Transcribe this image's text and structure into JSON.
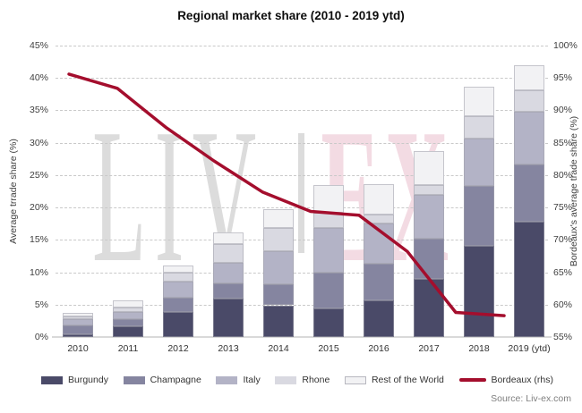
{
  "window": {
    "title": "Regional market share (2010 - 2019 ytd)"
  },
  "source_note": "Source: Liv-ex.com",
  "watermark": {
    "left_text": "LIV",
    "right_text": "EX",
    "gray": "#dcdcdc",
    "pink": "#f3dbe3"
  },
  "chart_data": {
    "type": "combo_stacked_bar_line",
    "title": "Regional market share (2010 - 2019 ytd)",
    "categories": [
      "2010",
      "2011",
      "2012",
      "2013",
      "2014",
      "2015",
      "2016",
      "2017",
      "2018",
      "2019 (ytd)"
    ],
    "left_axis": {
      "label": "Average trrade share (%)",
      "min": 0,
      "max": 45,
      "step": 5,
      "tick_labels": [
        "0%",
        "5%",
        "10%",
        "15%",
        "20%",
        "25%",
        "30%",
        "35%",
        "40%",
        "45%"
      ]
    },
    "right_axis": {
      "label": "Bordeaux's average trade share (%)",
      "min": 55,
      "max": 100,
      "step": 5,
      "tick_labels": [
        "55%",
        "60%",
        "65%",
        "70%",
        "75%",
        "80%",
        "85%",
        "90%",
        "95%",
        "100%"
      ]
    },
    "grid": "dashed horizontal",
    "legend_position": "bottom",
    "series": [
      {
        "name": "Burgundy",
        "color": "#4a4a68",
        "values": [
          0.4,
          1.7,
          3.9,
          5.9,
          4.9,
          4.4,
          5.6,
          9.0,
          14.1,
          17.8
        ]
      },
      {
        "name": "Champagne",
        "color": "#8585a0",
        "values": [
          1.4,
          1.0,
          2.2,
          2.4,
          3.2,
          5.5,
          5.7,
          6.2,
          9.2,
          8.9
        ]
      },
      {
        "name": "Italy",
        "color": "#b3b3c6",
        "values": [
          0.9,
          1.1,
          2.4,
          3.2,
          5.1,
          6.9,
          6.2,
          6.7,
          7.4,
          8.1
        ]
      },
      {
        "name": "Rhone",
        "color": "#d9d9e1",
        "values": [
          0.5,
          0.8,
          1.4,
          2.8,
          3.7,
          2.4,
          1.4,
          1.6,
          3.4,
          3.3
        ]
      },
      {
        "name": "Rest of the World",
        "color": "#f2f2f4",
        "values": [
          0.5,
          1.1,
          1.1,
          1.9,
          2.9,
          4.2,
          4.7,
          5.2,
          4.5,
          3.9
        ]
      }
    ],
    "line_series": {
      "name": "Bordeaux (rhs)",
      "axis": "right",
      "color": "#a40e2d",
      "values": [
        95.6,
        93.4,
        87.4,
        82.2,
        77.4,
        74.4,
        73.8,
        68.2,
        58.8,
        58.3
      ]
    }
  }
}
